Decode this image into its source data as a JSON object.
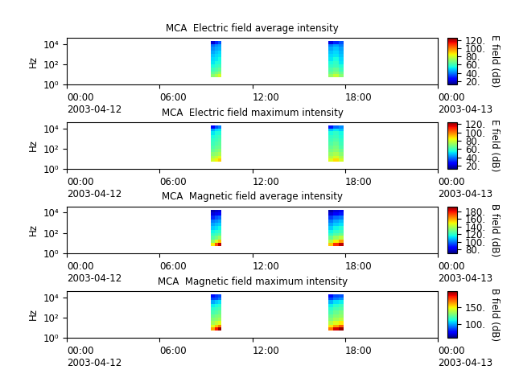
{
  "chart_data": [
    {
      "type": "heatmap",
      "title": "MCA  Electric field average intensity",
      "y_label": "Hz",
      "log": "y",
      "xlim": [
        0,
        24
      ],
      "ylim": [
        1,
        40000
      ],
      "xticks": [
        {
          "value": 0,
          "label": "00:00\n2003-04-12"
        },
        {
          "value": 6,
          "label": "06:00"
        },
        {
          "value": 12,
          "label": "12:00"
        },
        {
          "value": 18,
          "label": "18:00"
        },
        {
          "value": 24,
          "label": "00:00\n2003-04-13"
        }
      ],
      "yticks": [
        {
          "value": 1,
          "label": "10⁰"
        },
        {
          "value": 100,
          "label": "10²"
        },
        {
          "value": 10000,
          "label": "10⁴"
        }
      ],
      "x_edges": [
        9.33,
        9.55,
        9.78,
        10.0,
        16.92,
        17.25,
        17.58,
        17.92
      ],
      "y_edges": [
        5,
        10,
        20,
        50,
        100,
        200,
        500,
        1000,
        2000,
        5000,
        10000,
        20000
      ],
      "cells": [
        [
          70,
          75,
          80,
          null,
          72,
          78,
          70
        ],
        [
          65,
          68,
          72,
          null,
          66,
          70,
          65
        ],
        [
          60,
          62,
          65,
          null,
          62,
          65,
          60
        ],
        [
          55,
          58,
          60,
          null,
          58,
          60,
          56
        ],
        [
          52,
          55,
          56,
          null,
          55,
          58,
          52
        ],
        [
          50,
          52,
          54,
          null,
          52,
          55,
          50
        ],
        [
          48,
          50,
          52,
          null,
          50,
          52,
          48
        ],
        [
          45,
          48,
          50,
          null,
          48,
          50,
          46
        ],
        [
          42,
          45,
          46,
          null,
          45,
          48,
          44
        ],
        [
          38,
          42,
          44,
          null,
          40,
          44,
          40
        ],
        [
          20,
          30,
          35,
          null,
          22,
          30,
          35
        ]
      ],
      "colorbar": {
        "label": "E field (dB)",
        "range": [
          12,
          125
        ],
        "ticks": [
          {
            "value": 20,
            "label": "20."
          },
          {
            "value": 40,
            "label": "40."
          },
          {
            "value": 60,
            "label": "60."
          },
          {
            "value": 80,
            "label": "80."
          },
          {
            "value": 100,
            "label": "100."
          },
          {
            "value": 120,
            "label": "120."
          }
        ]
      }
    },
    {
      "type": "heatmap",
      "title": "MCA  Electric field maximum intensity",
      "y_label": "Hz",
      "log": "y",
      "xlim": [
        0,
        24
      ],
      "ylim": [
        1,
        40000
      ],
      "xticks": [
        {
          "value": 0,
          "label": "00:00\n2003-04-12"
        },
        {
          "value": 6,
          "label": "06:00"
        },
        {
          "value": 12,
          "label": "12:00"
        },
        {
          "value": 18,
          "label": "18:00"
        },
        {
          "value": 24,
          "label": "00:00\n2003-04-13"
        }
      ],
      "yticks": [
        {
          "value": 1,
          "label": "10⁰"
        },
        {
          "value": 100,
          "label": "10²"
        },
        {
          "value": 10000,
          "label": "10⁴"
        }
      ],
      "x_edges": [
        9.33,
        9.55,
        9.78,
        10.0,
        16.92,
        17.25,
        17.58,
        17.92
      ],
      "y_edges": [
        5,
        10,
        20,
        50,
        100,
        200,
        500,
        1000,
        2000,
        5000,
        10000,
        20000
      ],
      "cells": [
        [
          80,
          85,
          90,
          null,
          82,
          88,
          80
        ],
        [
          75,
          78,
          82,
          null,
          76,
          80,
          75
        ],
        [
          70,
          72,
          75,
          null,
          72,
          75,
          70
        ],
        [
          65,
          68,
          70,
          null,
          68,
          70,
          66
        ],
        [
          62,
          65,
          66,
          null,
          65,
          68,
          62
        ],
        [
          60,
          62,
          64,
          null,
          62,
          65,
          60
        ],
        [
          58,
          60,
          62,
          null,
          60,
          62,
          58
        ],
        [
          55,
          58,
          60,
          null,
          58,
          60,
          56
        ],
        [
          52,
          55,
          56,
          null,
          55,
          58,
          54
        ],
        [
          45,
          50,
          52,
          null,
          48,
          52,
          48
        ],
        [
          25,
          35,
          40,
          null,
          28,
          38,
          42
        ]
      ],
      "colorbar": {
        "label": "E field (dB)",
        "range": [
          12,
          125
        ],
        "ticks": [
          {
            "value": 20,
            "label": "20."
          },
          {
            "value": 40,
            "label": "40."
          },
          {
            "value": 60,
            "label": "60."
          },
          {
            "value": 80,
            "label": "80."
          },
          {
            "value": 100,
            "label": "100."
          },
          {
            "value": 120,
            "label": "120."
          }
        ]
      }
    },
    {
      "type": "heatmap",
      "title": "MCA  Magnetic field average intensity",
      "y_label": "Hz",
      "log": "y",
      "xlim": [
        0,
        24
      ],
      "ylim": [
        1,
        40000
      ],
      "xticks": [
        {
          "value": 0,
          "label": "00:00\n2003-04-12"
        },
        {
          "value": 6,
          "label": "06:00"
        },
        {
          "value": 12,
          "label": "12:00"
        },
        {
          "value": 18,
          "label": "18:00"
        },
        {
          "value": 24,
          "label": "00:00\n2003-04-13"
        }
      ],
      "yticks": [
        {
          "value": 1,
          "label": "10⁰"
        },
        {
          "value": 100,
          "label": "10²"
        },
        {
          "value": 10000,
          "label": "10⁴"
        }
      ],
      "x_edges": [
        9.33,
        9.55,
        9.78,
        10.0,
        16.92,
        17.25,
        17.58,
        17.92
      ],
      "y_edges": [
        5,
        10,
        20,
        50,
        100,
        200,
        500,
        1000,
        2000,
        5000,
        10000,
        20000
      ],
      "cells": [
        [
          150,
          170,
          185,
          null,
          155,
          175,
          185
        ],
        [
          135,
          145,
          155,
          null,
          140,
          150,
          160
        ],
        [
          125,
          130,
          135,
          null,
          128,
          135,
          140
        ],
        [
          120,
          122,
          125,
          null,
          120,
          125,
          128
        ],
        [
          115,
          118,
          120,
          null,
          115,
          120,
          122
        ],
        [
          110,
          112,
          115,
          null,
          110,
          115,
          118
        ],
        [
          105,
          108,
          110,
          null,
          105,
          110,
          112
        ],
        [
          100,
          102,
          105,
          null,
          100,
          105,
          108
        ],
        [
          90,
          95,
          98,
          null,
          92,
          98,
          100
        ],
        [
          80,
          82,
          85,
          null,
          80,
          85,
          88
        ],
        [
          75,
          78,
          80,
          null,
          75,
          80,
          82
        ]
      ],
      "colorbar": {
        "label": "B field (dB)",
        "range": [
          70,
          192
        ],
        "ticks": [
          {
            "value": 80,
            "label": "80."
          },
          {
            "value": 100,
            "label": "100."
          },
          {
            "value": 120,
            "label": "120."
          },
          {
            "value": 140,
            "label": "140."
          },
          {
            "value": 160,
            "label": "160."
          },
          {
            "value": 180,
            "label": "180."
          }
        ]
      }
    },
    {
      "type": "heatmap",
      "title": "MCA  Magnetic field maximum intensity",
      "y_label": "Hz",
      "log": "y",
      "xlim": [
        0,
        24
      ],
      "ylim": [
        1,
        40000
      ],
      "xticks": [
        {
          "value": 0,
          "label": "00:00\n2003-04-12"
        },
        {
          "value": 6,
          "label": "06:00"
        },
        {
          "value": 12,
          "label": "12:00"
        },
        {
          "value": 18,
          "label": "18:00"
        },
        {
          "value": 24,
          "label": "00:00\n2003-04-13"
        }
      ],
      "yticks": [
        {
          "value": 1,
          "label": "10⁰"
        },
        {
          "value": 100,
          "label": "10²"
        },
        {
          "value": 10000,
          "label": "10⁴"
        }
      ],
      "x_edges": [
        9.33,
        9.55,
        9.78,
        10.0,
        16.92,
        17.25,
        17.58,
        17.92
      ],
      "y_edges": [
        5,
        10,
        20,
        50,
        100,
        200,
        500,
        1000,
        2000,
        5000,
        10000,
        20000
      ],
      "cells": [
        [
          160,
          180,
          192,
          null,
          165,
          185,
          192
        ],
        [
          145,
          155,
          165,
          null,
          150,
          160,
          170
        ],
        [
          135,
          140,
          145,
          null,
          138,
          145,
          150
        ],
        [
          130,
          132,
          135,
          null,
          130,
          135,
          138
        ],
        [
          125,
          128,
          130,
          null,
          125,
          130,
          132
        ],
        [
          120,
          122,
          125,
          null,
          120,
          125,
          128
        ],
        [
          115,
          118,
          120,
          null,
          115,
          120,
          122
        ],
        [
          110,
          112,
          115,
          null,
          110,
          115,
          118
        ],
        [
          100,
          105,
          108,
          null,
          102,
          108,
          110
        ],
        [
          88,
          90,
          95,
          null,
          88,
          95,
          98
        ],
        [
          80,
          85,
          88,
          null,
          80,
          88,
          90
        ]
      ],
      "colorbar": {
        "label": "B field (dB)",
        "range": [
          62,
          195
        ],
        "ticks": [
          {
            "value": 100,
            "label": "100."
          },
          {
            "value": 150,
            "label": "150."
          }
        ]
      }
    }
  ]
}
